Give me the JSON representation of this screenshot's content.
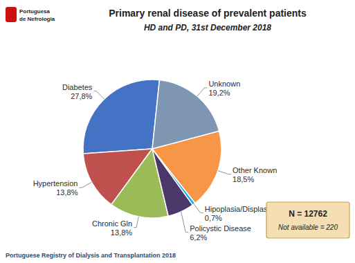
{
  "chart_data": {
    "type": "pie",
    "title": "Primary renal disease of prevalent patients",
    "subtitle": "HD and PD, 31st December 2018",
    "categories": [
      "Diabetes",
      "Hypertension",
      "Chronic Gln",
      "Policystic Disease",
      "Hipoplasia/Displasia",
      "Other Known",
      "Unknown"
    ],
    "values": [
      27.8,
      13.8,
      13.8,
      6.2,
      0.7,
      18.5,
      19.2
    ],
    "value_labels": [
      "27,8%",
      "13,8%",
      "13,8%",
      "6,2%",
      "0,7%",
      "18,5%",
      "19,2%"
    ],
    "colors": [
      "#4472C4",
      "#C0504D",
      "#9BBB59",
      "#4B3869",
      "#00B0F0",
      "#F79646",
      "#7F96B2"
    ],
    "data_labels": true,
    "annotations": [
      "N = 12762",
      "Not available = 220",
      "Portuguese Registry of Dialysis and Transplantation 2018",
      "Portuguesa",
      "de Nefrologia"
    ]
  }
}
